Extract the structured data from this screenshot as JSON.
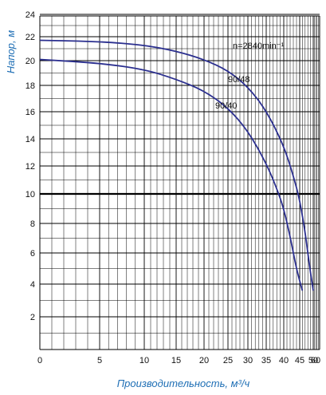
{
  "chart_data": {
    "type": "line",
    "title": "",
    "xlabel": "Производительность, м³/ч",
    "ylabel": "Напор, м",
    "x_scale": "linear-in-sqrt-like (tick positions non-uniform)",
    "xlim": [
      0,
      60
    ],
    "ylim": [
      0,
      24
    ],
    "x_ticks": [
      0,
      5,
      10,
      15,
      20,
      25,
      30,
      35,
      40,
      45,
      50,
      55,
      60
    ],
    "y_ticks": [
      2,
      4,
      6,
      8,
      10,
      12,
      14,
      16,
      18,
      20,
      22,
      24
    ],
    "reference_line_y": 10,
    "grid": true,
    "colors": {
      "series": "#2b2f8f",
      "grid": "#000000",
      "axis_title": "#1f6fb5"
    },
    "annotation_speed": "n=2840min⁻¹",
    "series": [
      {
        "name": "90/48",
        "x": [
          0,
          5,
          10,
          15,
          20,
          25,
          30,
          35,
          40,
          43,
          45,
          47,
          48,
          49,
          50
        ],
        "y": [
          21.7,
          21.6,
          21.3,
          20.8,
          20.1,
          19.2,
          17.9,
          16.1,
          13.5,
          11.3,
          9.6,
          7.4,
          6.0,
          4.7,
          3.6
        ]
      },
      {
        "name": "90/40",
        "x": [
          0,
          5,
          10,
          15,
          20,
          25,
          30,
          35,
          38,
          40,
          42,
          43,
          44,
          45,
          46
        ],
        "y": [
          20.1,
          19.8,
          19.3,
          18.5,
          17.6,
          16.3,
          14.6,
          12.2,
          10.4,
          9.0,
          7.1,
          6.0,
          5.0,
          4.2,
          3.6
        ]
      }
    ]
  }
}
